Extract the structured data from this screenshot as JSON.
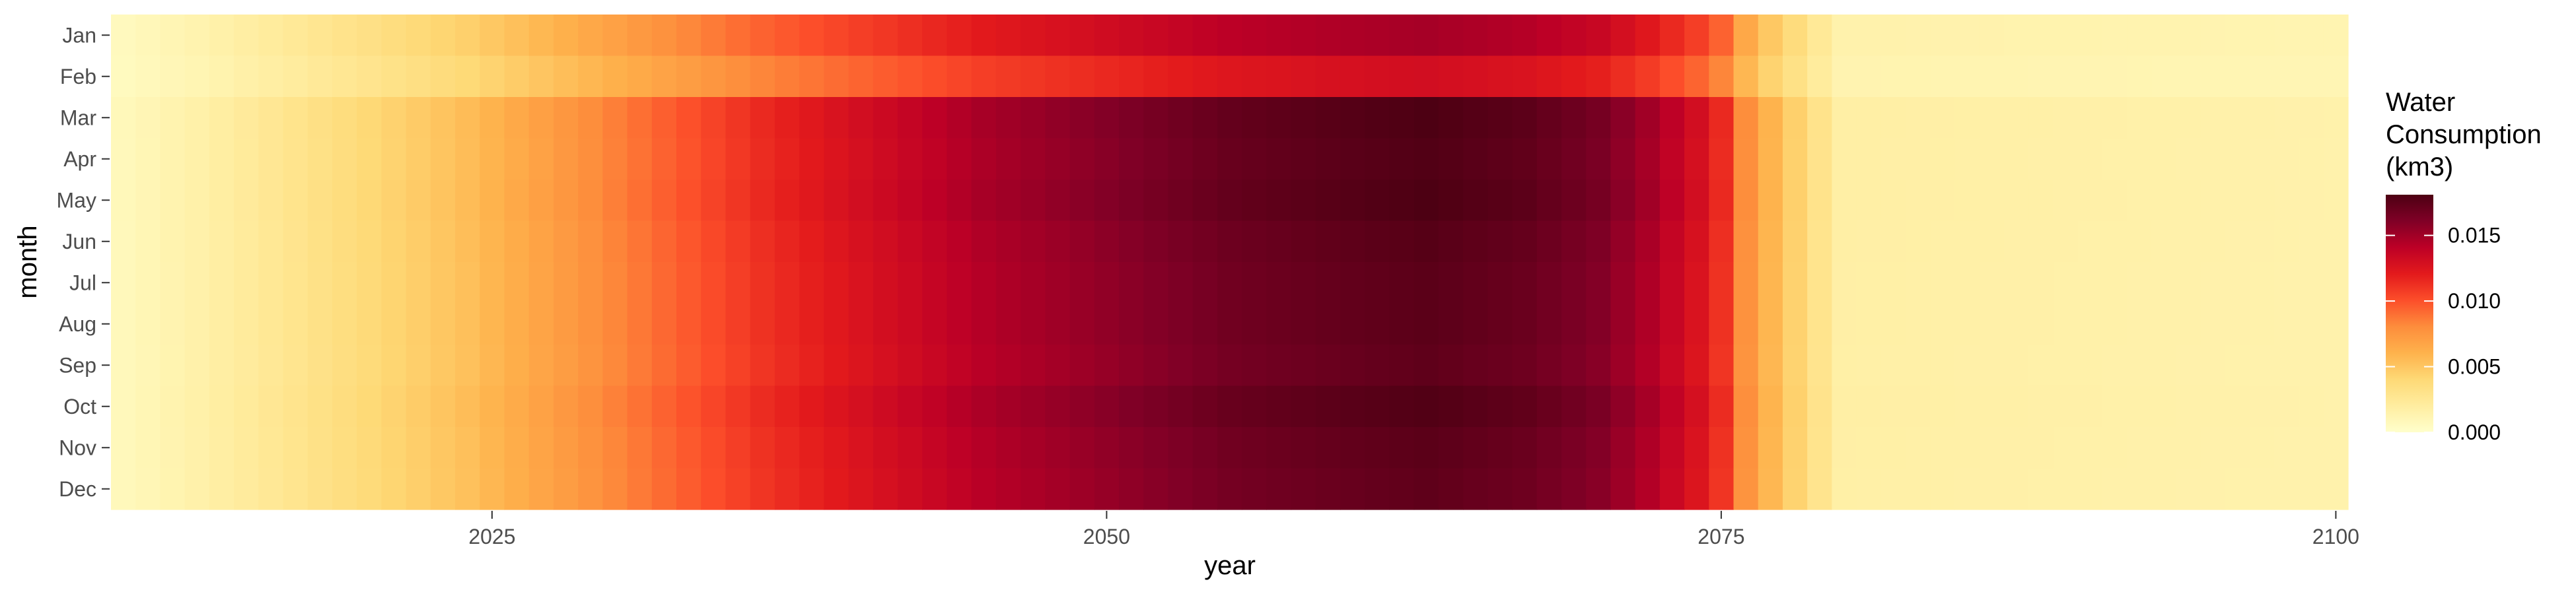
{
  "chart_data": {
    "type": "heatmap",
    "title": "",
    "xlabel": "year",
    "ylabel": "month",
    "x_range": [
      2010,
      2100
    ],
    "x_ticks": [
      "2025",
      "2050",
      "2075",
      "2100"
    ],
    "months": [
      "Jan",
      "Feb",
      "Mar",
      "Apr",
      "May",
      "Jun",
      "Jul",
      "Aug",
      "Sep",
      "Oct",
      "Nov",
      "Dec"
    ],
    "value_profile_by_year": [
      [
        2010,
        0.0008
      ],
      [
        2013,
        0.0016
      ],
      [
        2016,
        0.0026
      ],
      [
        2020,
        0.004
      ],
      [
        2024,
        0.0055
      ],
      [
        2028,
        0.0075
      ],
      [
        2032,
        0.0095
      ],
      [
        2036,
        0.0115
      ],
      [
        2040,
        0.013
      ],
      [
        2045,
        0.0148
      ],
      [
        2050,
        0.016
      ],
      [
        2055,
        0.0172
      ],
      [
        2060,
        0.0178
      ],
      [
        2063,
        0.0181
      ],
      [
        2067,
        0.0175
      ],
      [
        2070,
        0.0165
      ],
      [
        2072,
        0.015
      ],
      [
        2074,
        0.013
      ],
      [
        2075,
        0.0115
      ],
      [
        2076,
        0.008
      ],
      [
        2077,
        0.006
      ],
      [
        2078,
        0.0045
      ],
      [
        2079,
        0.003
      ],
      [
        2080,
        0.0018
      ],
      [
        2100,
        0.0015
      ]
    ],
    "month_factors": [
      0.82,
      0.72,
      1.0,
      0.99,
      1.0,
      0.98,
      0.97,
      0.97,
      0.96,
      0.99,
      0.97,
      0.96
    ],
    "legend": {
      "title_lines": [
        "Water",
        "Consumption",
        "(km3)"
      ],
      "labels": [
        "0.015",
        "0.010",
        "0.005",
        "0.000"
      ],
      "label_values": [
        0.015,
        0.01,
        0.005,
        0.0
      ],
      "max": 0.0181
    },
    "colorscale": "YlOrRd",
    "colors": [
      "#ffffcc",
      "#ffeda0",
      "#fed976",
      "#feb24c",
      "#fd8d3c",
      "#fc4e2a",
      "#e31a1c",
      "#bd0026",
      "#800026",
      "#4d0013"
    ],
    "grid": false,
    "legend_position": "right"
  }
}
